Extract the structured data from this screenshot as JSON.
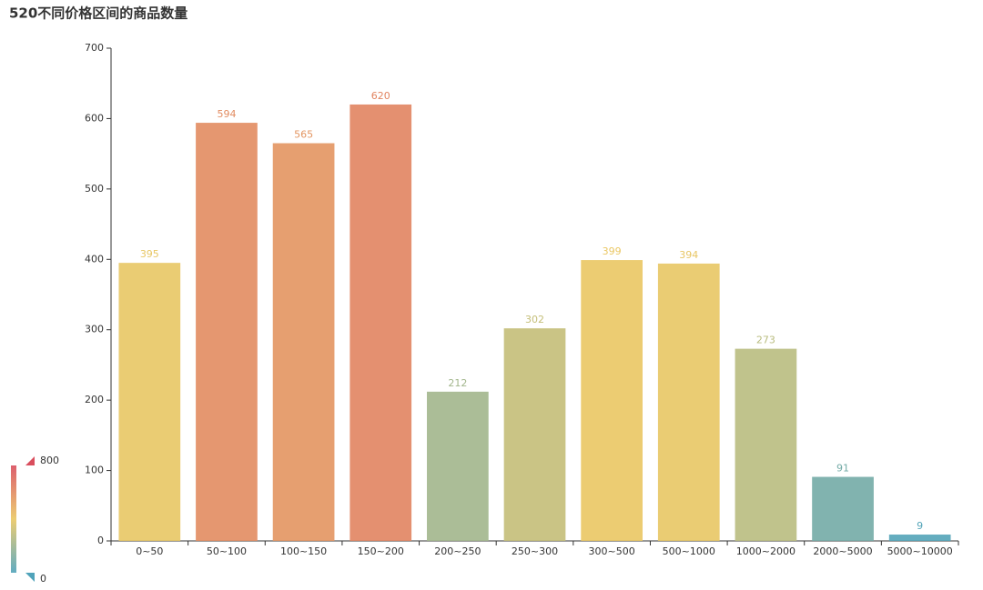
{
  "chart_data": {
    "type": "bar",
    "title": "520不同价格区间的商品数量",
    "categories": [
      "0~50",
      "50~100",
      "100~150",
      "150~200",
      "200~250",
      "250~300",
      "300~500",
      "500~1000",
      "1000~2000",
      "2000~5000",
      "5000~10000"
    ],
    "values": [
      395,
      594,
      565,
      620,
      212,
      302,
      399,
      394,
      273,
      91,
      9
    ],
    "ylim": [
      0,
      700
    ],
    "yticks": [
      0,
      100,
      200,
      300,
      400,
      500,
      600,
      700
    ],
    "visual_map": {
      "min": 0,
      "max": 800,
      "colors": [
        "#50a3ba",
        "#eac763",
        "#d94e5d"
      ]
    }
  }
}
